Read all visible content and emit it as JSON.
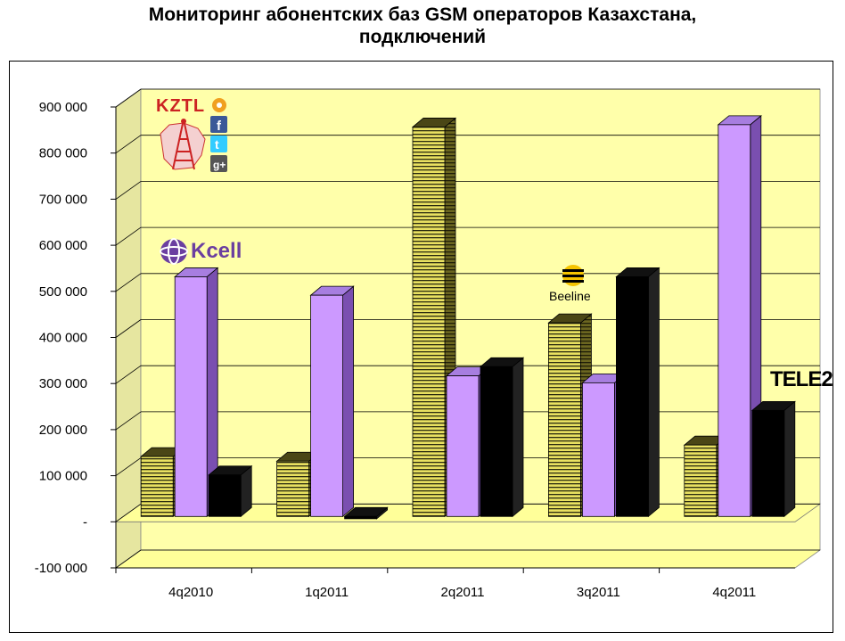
{
  "title_line1": "Мониторинг абонентских баз GSM операторов Казахстана,",
  "title_line2": "подключений",
  "chart_data": {
    "type": "bar",
    "title": "Мониторинг абонентских баз GSM операторов Казахстана, подключений",
    "categories": [
      "4q2010",
      "1q2011",
      "2q2011",
      "3q2011",
      "4q2011"
    ],
    "series": [
      {
        "values": [
          130000,
          120000,
          845000,
          420000,
          155000
        ],
        "color": "#e8e060",
        "pattern": "hatched"
      },
      {
        "values": [
          520000,
          480000,
          305000,
          290000,
          850000
        ],
        "color": "#cc99ff",
        "pattern": "solid"
      },
      {
        "values": [
          90000,
          -5000,
          325000,
          520000,
          230000
        ],
        "color": "#000000",
        "pattern": "solid"
      }
    ],
    "ylim": [
      -100000,
      900000
    ],
    "y_ticks": [
      "-100 000",
      "-",
      "100 000",
      "200 000",
      "300 000",
      "400 000",
      "500 000",
      "600 000",
      "700 000",
      "800 000",
      "900 000"
    ],
    "grid": true,
    "wall_color": "#ffffaa",
    "floor_color": "#ffff99"
  },
  "logos": {
    "kztl": "KZTL",
    "kcell": "Kcell",
    "beeline": "Beeline",
    "tele2": "TELE2",
    "icons": [
      "flower-icon",
      "facebook-icon",
      "twitter-icon",
      "google-plus-icon"
    ],
    "colors": {
      "kcell": "#6b3fa0",
      "kztl": "#cc2222",
      "facebook": "#3b5998",
      "twitter": "#33ccff",
      "gplus": "#555555"
    }
  }
}
